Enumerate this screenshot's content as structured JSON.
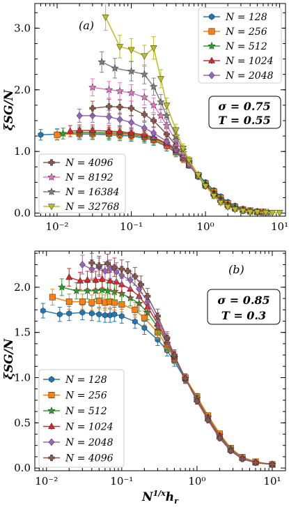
{
  "chart_data": [
    {
      "type": "line",
      "panel_label": "(a)",
      "ylabel": "ξSG/N",
      "xlabel": "",
      "xscale": "log",
      "xlim": [
        0.005,
        12
      ],
      "ylim": [
        -0.05,
        3.4
      ],
      "x_ticks": [
        "10⁻²",
        "10⁻¹",
        "10⁰",
        "10¹"
      ],
      "y_ticks": [
        "0.0",
        "1.0",
        "2.0",
        "3.0"
      ],
      "annotation": {
        "line1": "σ = 0.75",
        "line2": "T = 0.55"
      },
      "legend_top_right": [
        "N = 128",
        "N = 256",
        "N = 512",
        "N = 1024",
        "N = 2048"
      ],
      "legend_bottom_left": [
        "N = 4096",
        "N = 8192",
        "N = 16384",
        "N = 32768"
      ],
      "series": [
        {
          "name": "N = 128",
          "color": "#1f77b4",
          "marker": "hexagon",
          "x": [
            0.006,
            0.01,
            0.02,
            0.03,
            0.05,
            0.07,
            0.1,
            0.15,
            0.2,
            0.3,
            0.4,
            0.5,
            0.6,
            0.8,
            1.0,
            1.3,
            1.6,
            2.0,
            2.5,
            3.2,
            4.0,
            5.0,
            6.0
          ],
          "y": [
            1.27,
            1.28,
            1.28,
            1.28,
            1.27,
            1.26,
            1.25,
            1.22,
            1.18,
            1.08,
            0.98,
            0.88,
            0.78,
            0.62,
            0.5,
            0.37,
            0.27,
            0.18,
            0.12,
            0.07,
            0.04,
            0.03,
            0.02
          ]
        },
        {
          "name": "N = 256",
          "color": "#ff7f0e",
          "marker": "square",
          "x": [
            0.01,
            0.02,
            0.03,
            0.05,
            0.07,
            0.1,
            0.15,
            0.2,
            0.3,
            0.4,
            0.5,
            0.6,
            0.8,
            1.0,
            1.3,
            1.6,
            2.0,
            2.5,
            3.2,
            4.0,
            5.0,
            6.0
          ],
          "y": [
            1.27,
            1.29,
            1.29,
            1.29,
            1.28,
            1.27,
            1.24,
            1.19,
            1.1,
            0.99,
            0.89,
            0.78,
            0.61,
            0.48,
            0.35,
            0.25,
            0.16,
            0.1,
            0.06,
            0.04,
            0.02,
            0.02
          ]
        },
        {
          "name": "N = 512",
          "color": "#2ca02c",
          "marker": "star",
          "x": [
            0.012,
            0.02,
            0.03,
            0.05,
            0.07,
            0.1,
            0.15,
            0.2,
            0.3,
            0.4,
            0.5,
            0.6,
            0.8,
            1.0,
            1.3,
            1.6,
            2.0,
            2.5,
            3.2,
            4.0,
            5.0
          ],
          "y": [
            1.29,
            1.31,
            1.31,
            1.3,
            1.3,
            1.28,
            1.25,
            1.21,
            1.12,
            1.01,
            0.9,
            0.79,
            0.62,
            0.47,
            0.33,
            0.23,
            0.14,
            0.09,
            0.05,
            0.03,
            0.02
          ]
        },
        {
          "name": "N = 1024",
          "color": "#d62728",
          "marker": "triangle",
          "x": [
            0.015,
            0.02,
            0.03,
            0.05,
            0.07,
            0.1,
            0.15,
            0.2,
            0.3,
            0.4,
            0.5,
            0.6,
            0.8,
            1.0,
            1.3,
            1.6,
            2.0,
            2.5,
            3.2,
            4.0,
            5.0
          ],
          "y": [
            1.33,
            1.34,
            1.34,
            1.33,
            1.32,
            1.3,
            1.27,
            1.23,
            1.13,
            1.02,
            0.9,
            0.78,
            0.6,
            0.45,
            0.31,
            0.21,
            0.13,
            0.08,
            0.05,
            0.03,
            0.02
          ]
        },
        {
          "name": "N = 2048",
          "color": "#9467bd",
          "marker": "diamond",
          "x": [
            0.02,
            0.03,
            0.05,
            0.07,
            0.1,
            0.15,
            0.2,
            0.3,
            0.4,
            0.5,
            0.6,
            0.8,
            1.0,
            1.3,
            1.6,
            2.0,
            2.5,
            3.2,
            4.0,
            5.0
          ],
          "y": [
            1.58,
            1.58,
            1.56,
            1.52,
            1.47,
            1.38,
            1.3,
            1.16,
            1.03,
            0.9,
            0.78,
            0.59,
            0.44,
            0.3,
            0.2,
            0.12,
            0.07,
            0.04,
            0.03,
            0.02
          ]
        },
        {
          "name": "N = 4096",
          "color": "#8c564b",
          "marker": "plus",
          "x": [
            0.03,
            0.05,
            0.07,
            0.1,
            0.15,
            0.2,
            0.3,
            0.4,
            0.5,
            0.6,
            0.8,
            1.0,
            1.3,
            1.6,
            2.0,
            2.5,
            3.2,
            4.0,
            5.0
          ],
          "y": [
            1.7,
            1.73,
            1.72,
            1.7,
            1.6,
            1.5,
            1.28,
            1.1,
            0.94,
            0.8,
            0.6,
            0.44,
            0.29,
            0.19,
            0.12,
            0.07,
            0.04,
            0.03,
            0.02
          ]
        },
        {
          "name": "N = 8192",
          "color": "#e377c2",
          "marker": "star",
          "x": [
            0.03,
            0.05,
            0.07,
            0.1,
            0.15,
            0.2,
            0.25,
            0.3,
            0.4,
            0.5,
            0.6,
            0.8,
            1.0,
            1.3,
            1.6,
            2.0,
            2.5,
            3.2,
            4.0,
            5.0,
            6.0
          ],
          "y": [
            2.04,
            2.0,
            1.98,
            1.95,
            1.88,
            1.75,
            1.58,
            1.42,
            1.18,
            0.98,
            0.82,
            0.61,
            0.44,
            0.28,
            0.18,
            0.11,
            0.07,
            0.04,
            0.02,
            0.02,
            0.01
          ]
        },
        {
          "name": "N = 16384",
          "color": "#7f7f7f",
          "marker": "star",
          "x": [
            0.04,
            0.06,
            0.1,
            0.15,
            0.2,
            0.25,
            0.3,
            0.4,
            0.5,
            0.6,
            0.8,
            1.0,
            1.3,
            1.6,
            2.0,
            2.5,
            3.2,
            4.0,
            5.0,
            6.0,
            7.0
          ],
          "y": [
            2.45,
            2.35,
            2.3,
            2.25,
            2.05,
            1.8,
            1.58,
            1.25,
            1.02,
            0.84,
            0.62,
            0.44,
            0.28,
            0.18,
            0.11,
            0.07,
            0.04,
            0.03,
            0.02,
            0.01,
            0.01
          ]
        },
        {
          "name": "N = 32768",
          "color": "#bcbd22",
          "marker": "triangle-down",
          "x": [
            0.045,
            0.07,
            0.1,
            0.15,
            0.2,
            0.25,
            0.3,
            0.4,
            0.5,
            0.6,
            0.8,
            1.0,
            1.3,
            1.6,
            2.0,
            2.5,
            3.2,
            4.0,
            5.0,
            6.5,
            8.0,
            10.0
          ],
          "y": [
            3.18,
            2.7,
            2.65,
            2.55,
            2.68,
            2.18,
            1.75,
            1.35,
            1.05,
            0.86,
            0.62,
            0.44,
            0.28,
            0.17,
            0.1,
            0.06,
            0.04,
            0.02,
            0.02,
            0.01,
            0.01,
            0.01
          ]
        }
      ]
    },
    {
      "type": "line",
      "panel_label": "(b)",
      "ylabel": "ξSG/N",
      "xlabel": "N^{1/x} h_r",
      "xscale": "log",
      "xlim": [
        0.007,
        15
      ],
      "ylim": [
        -0.03,
        2.4
      ],
      "x_ticks": [
        "10⁻²",
        "10⁻¹",
        "10⁰",
        "10¹"
      ],
      "y_ticks": [
        "0.0",
        "0.5",
        "1.0",
        "1.5",
        "2.0"
      ],
      "annotation": {
        "line1": "σ = 0.85",
        "line2": "T = 0.3"
      },
      "legend_bottom_left": [
        "N = 128",
        "N = 256",
        "N = 512",
        "N = 1024",
        "N = 2048",
        "N = 4096"
      ],
      "series": [
        {
          "name": "N = 128",
          "color": "#1f77b4",
          "marker": "hexagon",
          "x": [
            0.009,
            0.015,
            0.02,
            0.03,
            0.04,
            0.05,
            0.06,
            0.07,
            0.08,
            0.1,
            0.15,
            0.2,
            0.3,
            0.4,
            0.5,
            0.7,
            1.0,
            1.4,
            2.0,
            2.8,
            4.0,
            6.0,
            10.0
          ],
          "y": [
            1.74,
            1.7,
            1.71,
            1.72,
            1.71,
            1.7,
            1.69,
            1.69,
            1.7,
            1.68,
            1.62,
            1.55,
            1.42,
            1.3,
            1.18,
            0.98,
            0.78,
            0.58,
            0.38,
            0.22,
            0.12,
            0.07,
            0.04
          ]
        },
        {
          "name": "N = 256",
          "color": "#ff7f0e",
          "marker": "square",
          "x": [
            0.012,
            0.02,
            0.03,
            0.04,
            0.05,
            0.06,
            0.07,
            0.08,
            0.1,
            0.15,
            0.2,
            0.3,
            0.4,
            0.5,
            0.7,
            1.0,
            1.4,
            2.0,
            2.8,
            4.0,
            6.0,
            10.0
          ],
          "y": [
            1.89,
            1.84,
            1.84,
            1.83,
            1.85,
            1.83,
            1.84,
            1.83,
            1.81,
            1.75,
            1.66,
            1.5,
            1.35,
            1.21,
            1.0,
            0.79,
            0.58,
            0.38,
            0.22,
            0.12,
            0.07,
            0.04
          ]
        },
        {
          "name": "N = 512",
          "color": "#2ca02c",
          "marker": "star",
          "x": [
            0.016,
            0.025,
            0.035,
            0.045,
            0.055,
            0.065,
            0.08,
            0.1,
            0.13,
            0.17,
            0.22,
            0.3,
            0.4,
            0.5,
            0.7,
            1.0,
            1.4,
            2.0,
            2.8,
            4.0,
            6.0,
            10.0
          ],
          "y": [
            2.0,
            1.96,
            1.96,
            1.96,
            1.97,
            1.96,
            1.95,
            1.93,
            1.88,
            1.82,
            1.72,
            1.56,
            1.38,
            1.22,
            0.99,
            0.77,
            0.56,
            0.36,
            0.21,
            0.11,
            0.06,
            0.04
          ]
        },
        {
          "name": "N = 1024",
          "color": "#d62728",
          "marker": "triangle",
          "x": [
            0.02,
            0.028,
            0.035,
            0.045,
            0.055,
            0.07,
            0.085,
            0.1,
            0.13,
            0.17,
            0.22,
            0.3,
            0.4,
            0.5,
            0.7,
            1.0,
            1.4,
            2.0,
            2.8,
            4.0,
            6.0,
            10.0
          ],
          "y": [
            2.11,
            2.07,
            2.08,
            2.08,
            2.09,
            2.07,
            2.06,
            2.03,
            1.98,
            1.9,
            1.78,
            1.6,
            1.4,
            1.23,
            0.99,
            0.76,
            0.55,
            0.35,
            0.2,
            0.11,
            0.06,
            0.04
          ]
        },
        {
          "name": "N = 2048",
          "color": "#9467bd",
          "marker": "diamond",
          "x": [
            0.03,
            0.04,
            0.05,
            0.06,
            0.07,
            0.085,
            0.1,
            0.13,
            0.17,
            0.22,
            0.3,
            0.4,
            0.5,
            0.7,
            1.0,
            1.4,
            2.0,
            2.8,
            4.0,
            6.0,
            10.0
          ],
          "y": [
            2.25,
            2.2,
            2.22,
            2.18,
            2.2,
            2.17,
            2.13,
            2.08,
            1.98,
            1.84,
            1.64,
            1.42,
            1.24,
            0.99,
            0.75,
            0.54,
            0.34,
            0.2,
            0.11,
            0.06,
            0.04
          ]
        },
        {
          "name": "N = 4096",
          "color": "#8c564b",
          "marker": "plus",
          "x": [
            0.04,
            0.05,
            0.065,
            0.08,
            0.1,
            0.12,
            0.15,
            0.18,
            0.22,
            0.3,
            0.4,
            0.5,
            0.7,
            1.0,
            1.4,
            2.0,
            2.8,
            4.0,
            6.0,
            10.0
          ],
          "y": [
            2.27,
            2.24,
            2.26,
            2.22,
            2.2,
            2.18,
            2.12,
            2.03,
            1.9,
            1.68,
            1.44,
            1.25,
            0.99,
            0.74,
            0.53,
            0.33,
            0.19,
            0.1,
            0.06,
            0.04
          ]
        }
      ]
    }
  ]
}
